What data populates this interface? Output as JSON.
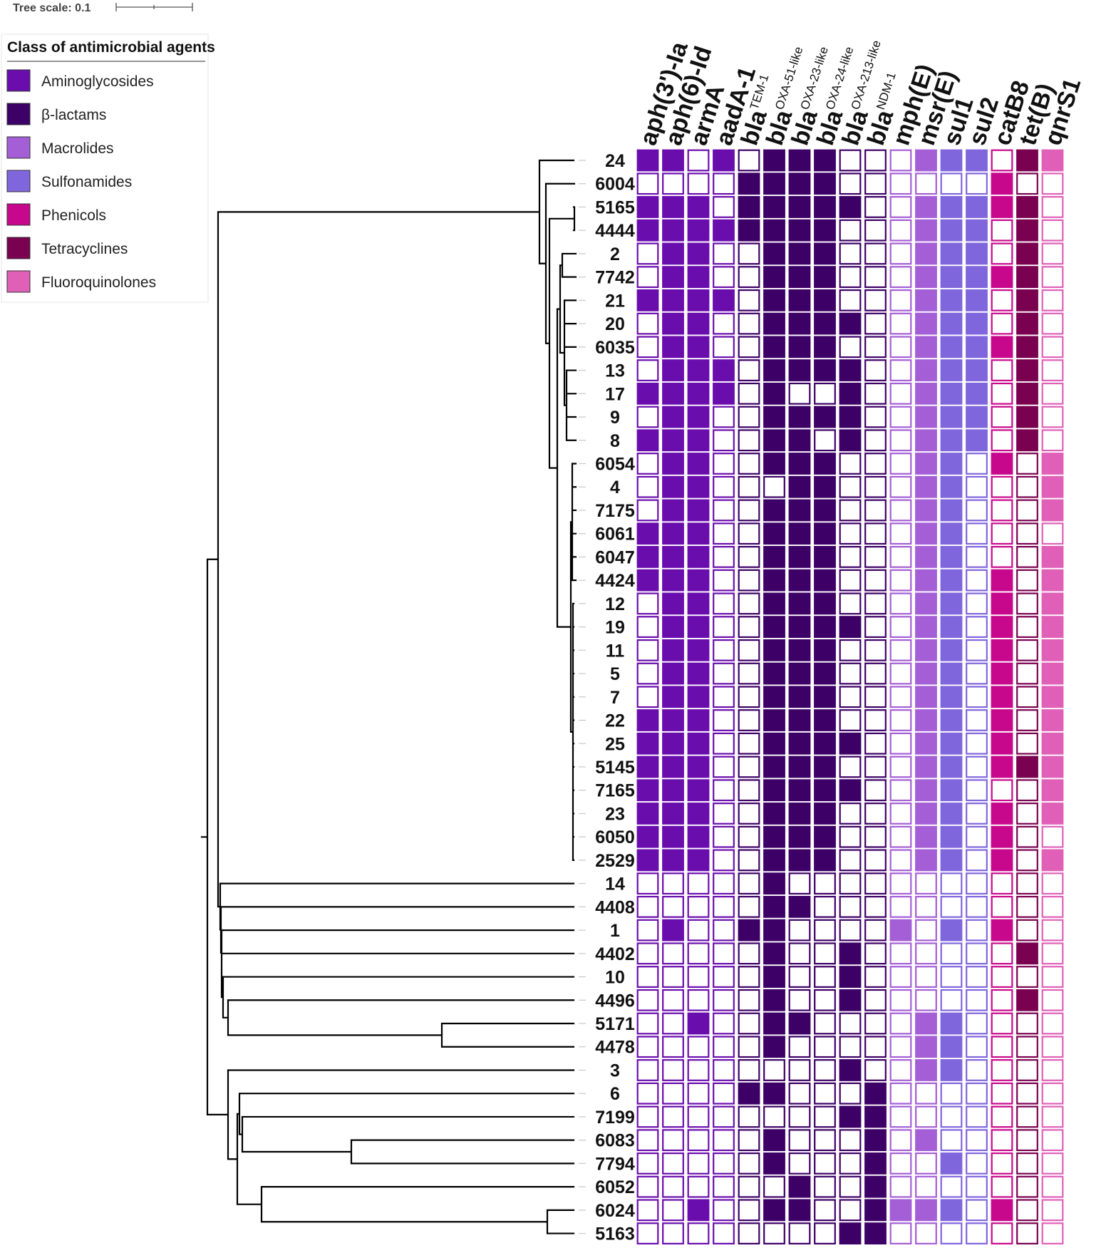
{
  "tree_scale": {
    "label": "Tree scale: 0.1"
  },
  "legend": {
    "title": "Class of antimicrobial agents",
    "items": [
      {
        "key": "A",
        "label": "Aminoglycosides",
        "color": "#6a0dad"
      },
      {
        "key": "B",
        "label": "β-lactams",
        "color": "#3d0066"
      },
      {
        "key": "M",
        "label": "Macrolides",
        "color": "#a45fd6"
      },
      {
        "key": "S",
        "label": "Sulfonamides",
        "color": "#8066dc"
      },
      {
        "key": "P",
        "label": "Phenicols",
        "color": "#c8088c"
      },
      {
        "key": "T",
        "label": "Tetracyclines",
        "color": "#7a0050"
      },
      {
        "key": "F",
        "label": "Fluoroquinolones",
        "color": "#e060b8"
      }
    ]
  },
  "genes": [
    {
      "main": "aph(3')-Ia",
      "sub": "",
      "class": "A"
    },
    {
      "main": "aph(6)-Id",
      "sub": "",
      "class": "A"
    },
    {
      "main": "armA",
      "sub": "",
      "class": "A"
    },
    {
      "main": "aadA-1",
      "sub": "",
      "class": "A"
    },
    {
      "main": "bla",
      "sub": "TEM-1",
      "class": "B"
    },
    {
      "main": "bla",
      "sub": "OXA-51-like",
      "class": "B"
    },
    {
      "main": "bla",
      "sub": "OXA-23-like",
      "class": "B"
    },
    {
      "main": "bla",
      "sub": "OXA-24-like",
      "class": "B"
    },
    {
      "main": "bla",
      "sub": "OXA-213-like",
      "class": "B"
    },
    {
      "main": "bla",
      "sub": "NDM-1",
      "class": "B"
    },
    {
      "main": "mph(E)",
      "sub": "",
      "class": "M"
    },
    {
      "main": "msr(E)",
      "sub": "",
      "class": "M"
    },
    {
      "main": "sul1",
      "sub": "",
      "class": "S"
    },
    {
      "main": "sul2",
      "sub": "",
      "class": "S"
    },
    {
      "main": "catB8",
      "sub": "",
      "class": "P"
    },
    {
      "main": "tet(B)",
      "sub": "",
      "class": "T"
    },
    {
      "main": "qnrS1",
      "sub": "",
      "class": "F"
    }
  ],
  "isolates": [
    {
      "label": "24",
      "genes": "11010111000111011"
    },
    {
      "label": "6004",
      "genes": "00001111000000100"
    },
    {
      "label": "5165",
      "genes": "11101111100111110"
    },
    {
      "label": "4444",
      "genes": "11111111000111010"
    },
    {
      "label": "2",
      "genes": "01100111000111010"
    },
    {
      "label": "7742",
      "genes": "01100111000111110"
    },
    {
      "label": "21",
      "genes": "11110111000111010"
    },
    {
      "label": "20",
      "genes": "01100111100111010"
    },
    {
      "label": "6035",
      "genes": "01100111000111110"
    },
    {
      "label": "13",
      "genes": "01110111100111010"
    },
    {
      "label": "17",
      "genes": "11110100100111010"
    },
    {
      "label": "9",
      "genes": "01100111100111010"
    },
    {
      "label": "8",
      "genes": "11100110100111010"
    },
    {
      "label": "6054",
      "genes": "01100111000110101"
    },
    {
      "label": "4",
      "genes": "01100011000110001"
    },
    {
      "label": "7175",
      "genes": "01100111000110001"
    },
    {
      "label": "6061",
      "genes": "11100111000110000"
    },
    {
      "label": "6047",
      "genes": "11100111000110001"
    },
    {
      "label": "4424",
      "genes": "11100111000110101"
    },
    {
      "label": "12",
      "genes": "01100111000110101"
    },
    {
      "label": "19",
      "genes": "01100111100110101"
    },
    {
      "label": "11",
      "genes": "01100111000110101"
    },
    {
      "label": "5",
      "genes": "01100111000110101"
    },
    {
      "label": "7",
      "genes": "01100111000110101"
    },
    {
      "label": "22",
      "genes": "11100111000110101"
    },
    {
      "label": "25",
      "genes": "11100111100110101"
    },
    {
      "label": "5145",
      "genes": "11100111000110111"
    },
    {
      "label": "7165",
      "genes": "11100111100110001"
    },
    {
      "label": "23",
      "genes": "11100111000110101"
    },
    {
      "label": "6050",
      "genes": "11100111000110100"
    },
    {
      "label": "2529",
      "genes": "11100111000110101"
    },
    {
      "label": "14",
      "genes": "00000100000000000"
    },
    {
      "label": "4408",
      "genes": "00000110000000000"
    },
    {
      "label": "1",
      "genes": "01001100001010100"
    },
    {
      "label": "4402",
      "genes": "00000100100000010"
    },
    {
      "label": "10",
      "genes": "00000100100000000"
    },
    {
      "label": "4496",
      "genes": "00000100100000010"
    },
    {
      "label": "5171",
      "genes": "00100110000110000"
    },
    {
      "label": "4478",
      "genes": "00000100000110000"
    },
    {
      "label": "3",
      "genes": "00000000100110000"
    },
    {
      "label": "6",
      "genes": "00001100010000000"
    },
    {
      "label": "7199",
      "genes": "00000000110000000"
    },
    {
      "label": "6083",
      "genes": "00000100010100000"
    },
    {
      "label": "7794",
      "genes": "00000100010010000"
    },
    {
      "label": "6052",
      "genes": "00000010010000000"
    },
    {
      "label": "6024",
      "genes": "00100110011110100"
    },
    {
      "label": "5163",
      "genes": "00000000110000000"
    }
  ]
}
